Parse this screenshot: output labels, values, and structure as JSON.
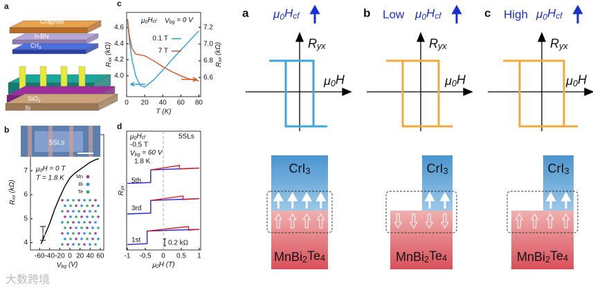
{
  "figure": {
    "device": {
      "label": "a",
      "layers": [
        "Graphite",
        "h-BN",
        [
          "CrI",
          "3"
        ],
        [
          "MnBi",
          "2",
          "Te",
          "4"
        ],
        [
          "SiO",
          "2"
        ],
        "Si"
      ]
    },
    "panels": [
      {
        "label": "a",
        "field": [
          "μ",
          "0",
          "H",
          "cf"
        ],
        "ylabel": [
          "R",
          "yx"
        ],
        "xlabel": [
          "μ",
          "0",
          "H"
        ],
        "top": [
          "CrI",
          "3"
        ],
        "bottom": [
          "MnBi",
          "2",
          "Te",
          "4"
        ]
      },
      {
        "label": "b",
        "level": "Low",
        "field": [
          "μ",
          "0",
          "H",
          "cf"
        ],
        "ylabel": [
          "R",
          "yx"
        ],
        "xlabel": [
          "μ",
          "0",
          "H"
        ],
        "top": [
          "CrI",
          "3"
        ],
        "bottom": [
          "MnBi",
          "2",
          "Te",
          "4"
        ]
      },
      {
        "label": "c",
        "level": "High",
        "field": [
          "μ",
          "0",
          "H",
          "cf"
        ],
        "ylabel": [
          "R",
          "yx"
        ],
        "xlabel": [
          "μ",
          "0",
          "H"
        ],
        "top": [
          "CrI",
          "3"
        ],
        "bottom": [
          "MnBi",
          "2",
          "Te",
          "4"
        ]
      }
    ],
    "watermark": "大数跨境"
  },
  "chart_data": [
    {
      "type": "line",
      "label": "b",
      "x": [
        -57,
        -50,
        -40,
        -30,
        -20,
        -10,
        0,
        10,
        20,
        30,
        40,
        50,
        57
      ],
      "values": [
        3.95,
        4.3,
        4.8,
        5.4,
        5.9,
        6.35,
        6.7,
        6.9,
        7.05,
        7.2,
        7.35,
        7.45,
        7.5
      ],
      "color": "#000000",
      "xlim": [
        -78,
        67
      ],
      "ylim": [
        3.7,
        8.5
      ],
      "xticks": [
        -60,
        -40,
        -20,
        0,
        20,
        40,
        60
      ],
      "yticks": [
        4,
        5,
        6,
        7,
        8
      ],
      "xlabel": [
        "V",
        "bg",
        " (V)"
      ],
      "ylabel": [
        "R",
        "xx",
        " (kΩ)"
      ],
      "annotations": [
        [
          "μ",
          "0",
          "H = 0 T"
        ],
        "T = 1.8 K",
        "5SLs",
        "SL"
      ],
      "legend": [
        "Mn",
        "Bi",
        "Te"
      ]
    },
    {
      "type": "line",
      "label": "c",
      "x": [
        1,
        3,
        6,
        10,
        15,
        20,
        30,
        40,
        50,
        60,
        70,
        80
      ],
      "series": [
        {
          "name": "0.1 T",
          "color": "#2a9fd6",
          "values": [
            4.7,
            4.45,
            4.2,
            4.0,
            3.88,
            3.86,
            3.95,
            4.07,
            4.2,
            4.32,
            4.44,
            4.56
          ]
        },
        {
          "name": "7 T",
          "color": "#d9541e",
          "axis": "y2",
          "values": [
            7.3,
            7.1,
            6.95,
            6.88,
            6.87,
            6.86,
            6.8,
            6.73,
            6.67,
            6.62,
            6.58,
            6.56
          ]
        }
      ],
      "xlim": [
        0,
        82
      ],
      "xticks": [
        0,
        20,
        40,
        60,
        80
      ],
      "ylim": [
        3.74,
        4.79
      ],
      "yticks": [
        {
          "value": 4,
          "label": "4.0"
        },
        4.2,
        4.4,
        4.6
      ],
      "y2lim": [
        6.37,
        7.38
      ],
      "y2ticks": [
        6.6,
        6.8,
        {
          "value": 7,
          "label": "7.0"
        },
        7.2
      ],
      "xlabel": "T (K)",
      "ylabel": [
        "R",
        "xx",
        " (kΩ)"
      ],
      "y2label": [
        "R",
        "xx",
        " (kΩ)"
      ],
      "annotations": [
        [
          "μ",
          "0",
          "H",
          "cf"
        ],
        [
          "V",
          "bg",
          " = 0 V"
        ]
      ]
    },
    {
      "type": "line",
      "label": "d",
      "series": [
        {
          "color": "#2323c8",
          "x": [
            -1,
            -0.45,
            -0.45,
            1
          ],
          "values": [
            0,
            0.05,
            0.75,
            0.85
          ]
        },
        {
          "color": "#dd1c1c",
          "x": [
            -0.45,
            0.7,
            0.7,
            1
          ],
          "values": [
            0.75,
            1.0,
            0.8,
            0.85
          ]
        },
        {
          "color": "#2323c8",
          "x": [
            -1,
            -0.35,
            -0.35,
            1
          ],
          "values": [
            1.7,
            1.75,
            2.45,
            2.55
          ]
        },
        {
          "color": "#dd1c1c",
          "x": [
            -0.35,
            0.55,
            0.55,
            1
          ],
          "values": [
            2.45,
            2.7,
            2.5,
            2.55
          ]
        },
        {
          "color": "#2323c8",
          "x": [
            -1,
            -0.35,
            -0.35,
            1
          ],
          "values": [
            3.4,
            3.45,
            4.15,
            4.25
          ]
        },
        {
          "color": "#dd1c1c",
          "x": [
            -0.35,
            0.45,
            0.45,
            1
          ],
          "values": [
            4.15,
            4.4,
            4.2,
            4.25
          ]
        }
      ],
      "xlim": [
        -1.02,
        1.04
      ],
      "xticks": [
        -1,
        -0.5,
        0,
        0.5,
        1
      ],
      "ylim": [
        -0.3,
        6.3
      ],
      "xlabel": [
        "μ",
        "0",
        "H (T)"
      ],
      "ylabel": [
        "R",
        "yx"
      ],
      "annotations": [
        [
          "μ",
          "0",
          "H",
          "cf"
        ],
        "-0.5 T",
        [
          "V",
          "bg",
          " = 60 V"
        ],
        "1.8 K",
        "5SLs",
        "0.2 kΩ"
      ],
      "layer_labels": [
        "5th",
        "3rd",
        "1st"
      ]
    }
  ]
}
